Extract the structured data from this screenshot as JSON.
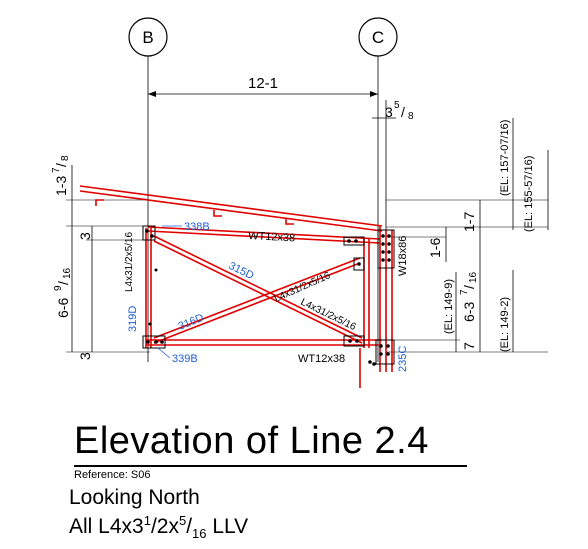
{
  "drawing": {
    "grid_labels": [
      "B",
      "C"
    ],
    "dims": {
      "span": "12-1",
      "offset_whole": "3",
      "offset_num": "5",
      "offset_den": "8",
      "left_top_whole": "1-3",
      "left_top_num": "7",
      "left_top_den": "8",
      "left_small": "3",
      "left_total_whole": "6-6",
      "left_total_num": "9",
      "left_total_den": "16",
      "right_1": "1-7",
      "right_2": "1-6",
      "right_3_whole": "6-3",
      "right_3_num": "7",
      "right_3_den": "16",
      "right_4": "7"
    },
    "elevations": {
      "el_1": "(EL: 157-07/16)",
      "el_2": "(EL: 155-57/16)",
      "el_3": "(EL: 149-9)",
      "el_4": "(EL: 149-2)"
    },
    "marks": {
      "m338b": "338B",
      "m315d": "315D",
      "m316d": "316D",
      "m319d": "319D",
      "m339b": "339B",
      "m235c": "235C"
    },
    "members": {
      "wt_top": "WT12x38",
      "wt_bot": "WT12x38",
      "w18": "W18x86",
      "l_left": "L4x31/2x5/16",
      "l_diag1": "L4x31/2x5/16",
      "l_diag2": "L4x31/2x5/16"
    }
  },
  "caption": {
    "title": "Elevation of Line 2.4",
    "reference": "Reference: S06",
    "looking": "Looking North",
    "all_prefix": "All L4x3",
    "all_sup1": "1",
    "all_mid": "/2x",
    "all_sup2": "5",
    "all_slash": "/",
    "all_sub": "16",
    "all_suffix": " LLV"
  },
  "colors": {
    "steel": "#e00000",
    "mark": "#1f5fd6",
    "line": "#000000"
  }
}
